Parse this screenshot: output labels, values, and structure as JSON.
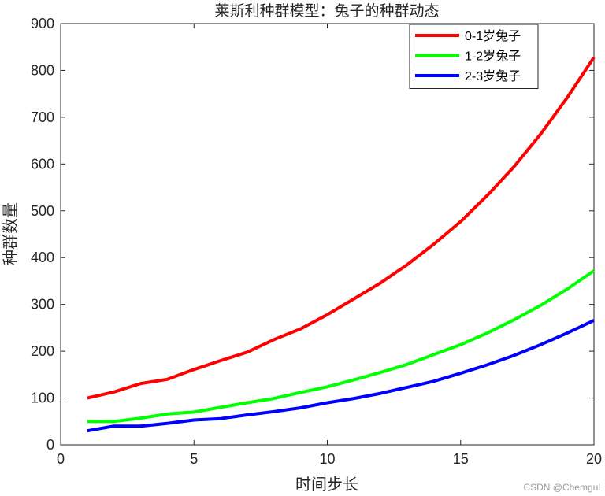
{
  "chart_data": {
    "type": "line",
    "title": "莱斯利种群模型：兔子的种群动态",
    "xlabel": "时间步长",
    "ylabel": "种群数量",
    "xlim": [
      0,
      20
    ],
    "ylim": [
      0,
      900
    ],
    "xticks": [
      0,
      5,
      10,
      15,
      20
    ],
    "yticks": [
      0,
      100,
      200,
      300,
      400,
      500,
      600,
      700,
      800,
      900
    ],
    "grid": false,
    "legend_position": "top-right",
    "x": [
      1,
      2,
      3,
      4,
      5,
      6,
      7,
      8,
      9,
      10,
      11,
      12,
      13,
      14,
      15,
      16,
      17,
      18,
      19,
      20
    ],
    "series": [
      {
        "name": "0-1岁兔子",
        "color": "#ff0000",
        "values": [
          100,
          113,
          131,
          140,
          161,
          180,
          198,
          225,
          248,
          278,
          312,
          346,
          385,
          429,
          477,
          533,
          594,
          664,
          742,
          828
        ]
      },
      {
        "name": "1-2岁兔子",
        "color": "#00ff00",
        "values": [
          50,
          50,
          57,
          66,
          70,
          80,
          90,
          99,
          112,
          124,
          139,
          155,
          172,
          193,
          214,
          239,
          267,
          298,
          333,
          372
        ]
      },
      {
        "name": "2-3岁兔子",
        "color": "#0000ff",
        "values": [
          30,
          40,
          40,
          46,
          53,
          56,
          64,
          71,
          79,
          90,
          99,
          110,
          123,
          136,
          153,
          171,
          191,
          214,
          239,
          266
        ]
      }
    ]
  },
  "watermark": "CSDN @Chemgul"
}
